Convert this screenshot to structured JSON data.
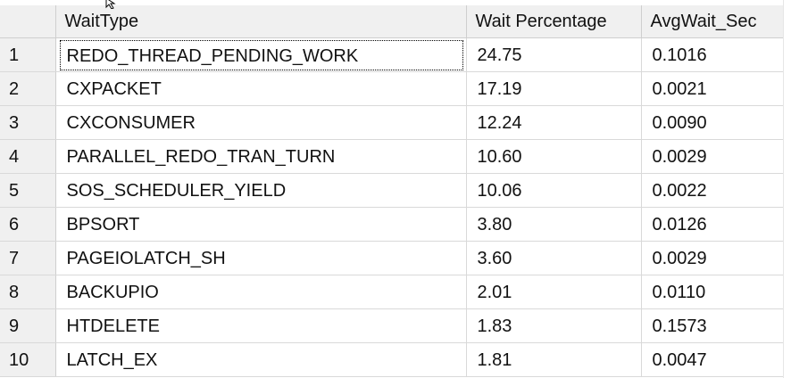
{
  "grid": {
    "columns": [
      "",
      "WaitType",
      "Wait Percentage",
      "AvgWait_Sec"
    ],
    "rows": [
      {
        "num": "1",
        "wait_type": "REDO_THREAD_PENDING_WORK",
        "wait_percentage": "24.75",
        "avg_wait_sec": "0.1016"
      },
      {
        "num": "2",
        "wait_type": "CXPACKET",
        "wait_percentage": "17.19",
        "avg_wait_sec": "0.0021"
      },
      {
        "num": "3",
        "wait_type": "CXCONSUMER",
        "wait_percentage": "12.24",
        "avg_wait_sec": "0.0090"
      },
      {
        "num": "4",
        "wait_type": "PARALLEL_REDO_TRAN_TURN",
        "wait_percentage": "10.60",
        "avg_wait_sec": "0.0029"
      },
      {
        "num": "5",
        "wait_type": "SOS_SCHEDULER_YIELD",
        "wait_percentage": "10.06",
        "avg_wait_sec": "0.0022"
      },
      {
        "num": "6",
        "wait_type": "BPSORT",
        "wait_percentage": "3.80",
        "avg_wait_sec": "0.0126"
      },
      {
        "num": "7",
        "wait_type": "PAGEIOLATCH_SH",
        "wait_percentage": "3.60",
        "avg_wait_sec": "0.0029"
      },
      {
        "num": "8",
        "wait_type": "BACKUPIO",
        "wait_percentage": "2.01",
        "avg_wait_sec": "0.0110"
      },
      {
        "num": "9",
        "wait_type": "HTDELETE",
        "wait_percentage": "1.83",
        "avg_wait_sec": "0.1573"
      },
      {
        "num": "10",
        "wait_type": "LATCH_EX",
        "wait_percentage": "1.81",
        "avg_wait_sec": "0.0047"
      }
    ],
    "selected_row": 1
  },
  "colors": {
    "header_bg": "#f0f0f0",
    "grid_line": "#d9d9d9",
    "text": "#111111"
  },
  "icons": {
    "cursor": "mouse-pointer-icon"
  }
}
